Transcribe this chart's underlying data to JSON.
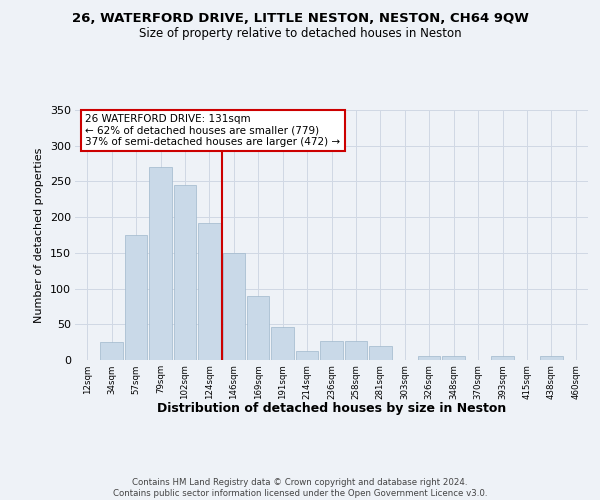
{
  "title1": "26, WATERFORD DRIVE, LITTLE NESTON, NESTON, CH64 9QW",
  "title2": "Size of property relative to detached houses in Neston",
  "xlabel": "Distribution of detached houses by size in Neston",
  "ylabel": "Number of detached properties",
  "bin_labels": [
    "12sqm",
    "34sqm",
    "57sqm",
    "79sqm",
    "102sqm",
    "124sqm",
    "146sqm",
    "169sqm",
    "191sqm",
    "214sqm",
    "236sqm",
    "258sqm",
    "281sqm",
    "303sqm",
    "326sqm",
    "348sqm",
    "370sqm",
    "393sqm",
    "415sqm",
    "438sqm",
    "460sqm"
  ],
  "bar_heights": [
    0,
    25,
    175,
    270,
    245,
    192,
    150,
    90,
    46,
    13,
    27,
    27,
    20,
    0,
    5,
    6,
    0,
    5,
    0,
    5,
    0
  ],
  "bar_color": "#c9d9e8",
  "bar_edge_color": "#a0b8cc",
  "vline_color": "#cc0000",
  "annotation_text": "26 WATERFORD DRIVE: 131sqm\n← 62% of detached houses are smaller (779)\n37% of semi-detached houses are larger (472) →",
  "ylim": [
    0,
    350
  ],
  "yticks": [
    0,
    50,
    100,
    150,
    200,
    250,
    300,
    350
  ],
  "footnote": "Contains HM Land Registry data © Crown copyright and database right 2024.\nContains public sector information licensed under the Open Government Licence v3.0.",
  "bg_color": "#eef2f7",
  "plot_bg_color": "#eef2f7",
  "grid_color": "#d0d8e4"
}
